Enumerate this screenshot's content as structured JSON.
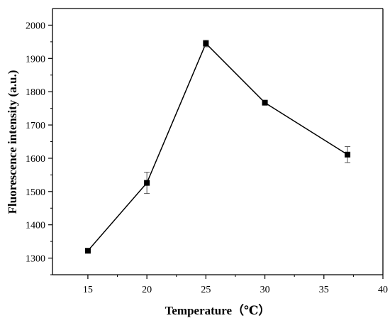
{
  "chart_data": {
    "type": "line",
    "title": "",
    "xlabel": "Temperature（℃）",
    "ylabel": "Fluorescence intensity (a.u.)",
    "xlim": [
      12,
      40
    ],
    "ylim": [
      1250,
      2050
    ],
    "x_ticks": [
      15,
      20,
      25,
      30,
      35,
      40
    ],
    "y_ticks": [
      1300,
      1400,
      1500,
      1600,
      1700,
      1800,
      1900,
      2000
    ],
    "x_tick_labels": [
      "15",
      "20",
      "25",
      "30",
      "35",
      "40"
    ],
    "y_tick_labels": [
      "1300",
      "1400",
      "1500",
      "1600",
      "1700",
      "1800",
      "1900",
      "2000"
    ],
    "grid": false,
    "legend": "none",
    "series": [
      {
        "marker": "square",
        "color": "#000000",
        "points": [
          {
            "x": 15,
            "y": 1322,
            "err": 3
          },
          {
            "x": 20,
            "y": 1526,
            "err": 32
          },
          {
            "x": 25,
            "y": 1945,
            "err": 10
          },
          {
            "x": 30,
            "y": 1767,
            "err": 4
          },
          {
            "x": 37,
            "y": 1611,
            "err": 24
          }
        ]
      }
    ]
  }
}
